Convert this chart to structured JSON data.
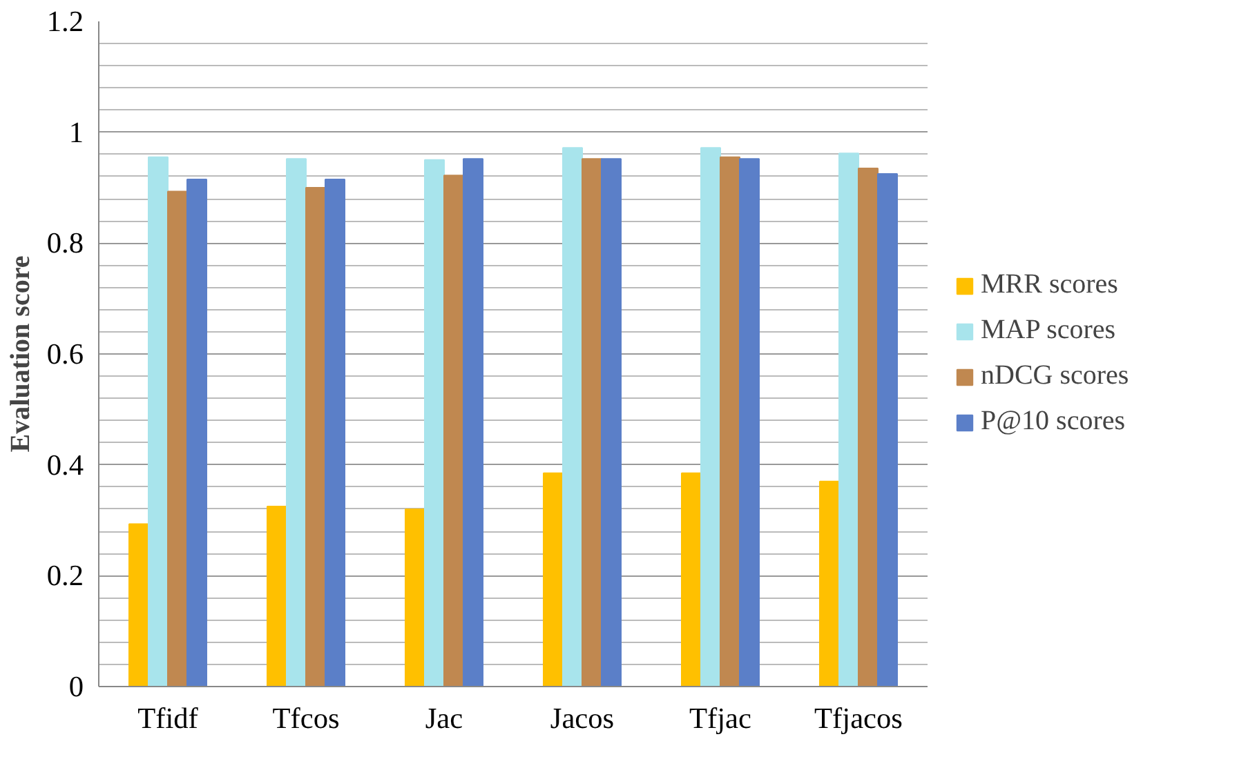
{
  "chart_data": {
    "type": "bar",
    "ylabel": "Evaluation score",
    "categories": [
      "Tfidf",
      "Tfcos",
      "Jac",
      "Jacos",
      "Tfjac",
      "Tfjacos"
    ],
    "series": [
      {
        "name": "MRR scores",
        "color": "#ffc000",
        "values": [
          0.293,
          0.325,
          0.32,
          0.385,
          0.385,
          0.37
        ]
      },
      {
        "name": "MAP scores",
        "color": "#a8e4ec",
        "values": [
          0.955,
          0.952,
          0.95,
          0.972,
          0.972,
          0.962
        ]
      },
      {
        "name": "nDCG scores",
        "color": "#c08850",
        "values": [
          0.893,
          0.9,
          0.922,
          0.952,
          0.955,
          0.935
        ]
      },
      {
        "name": "P@10 scores",
        "color": "#5b7fc8",
        "values": [
          0.915,
          0.915,
          0.952,
          0.952,
          0.952,
          0.925
        ]
      }
    ],
    "ylim": [
      0,
      1.2
    ],
    "yticks": [
      0,
      {
        "value": 0.2,
        "label": "0.2"
      },
      {
        "value": 0.4,
        "label": "0.4"
      },
      {
        "value": 0.6,
        "label": "0.6"
      },
      {
        "value": 0.8,
        "label": "0.8"
      },
      1,
      {
        "value": 1.2,
        "label": "1.2"
      }
    ],
    "grid": "y",
    "legend": "right"
  }
}
